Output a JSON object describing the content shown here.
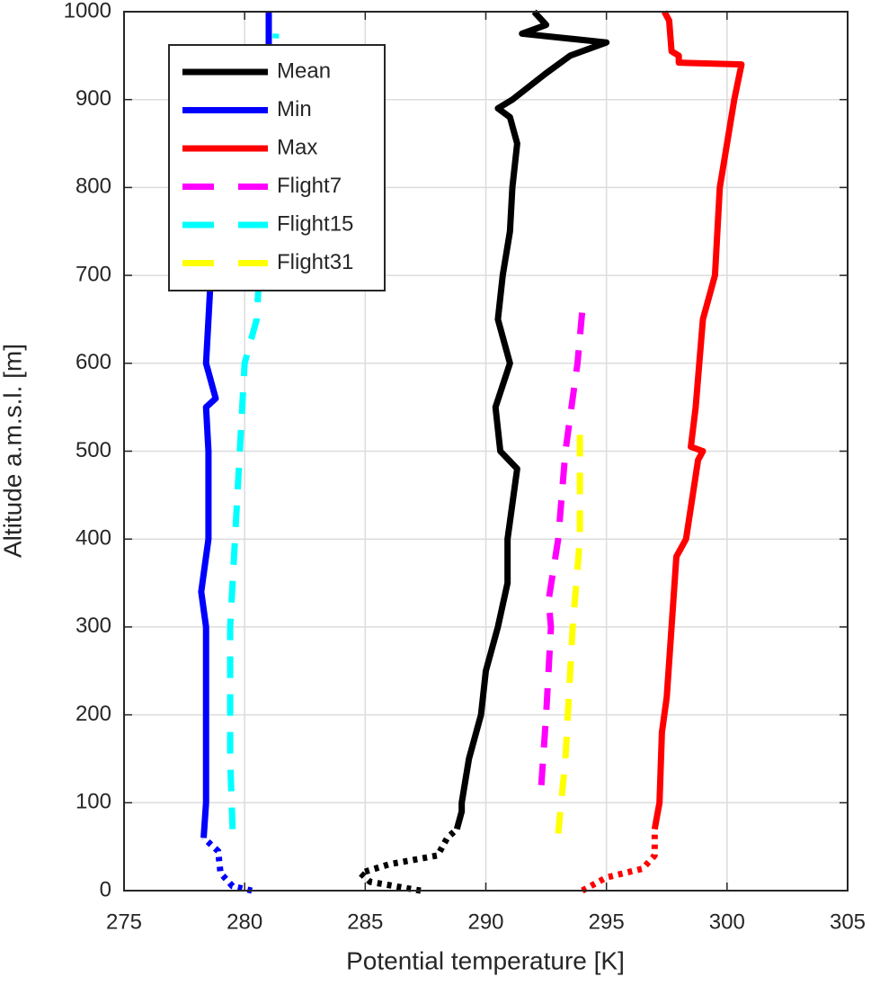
{
  "chart_data": {
    "type": "line",
    "xlabel": "Potential temperature [K]",
    "ylabel": "Altitude a.m.s.l. [m]",
    "xlim": [
      275,
      305
    ],
    "xticks": [
      275,
      280,
      285,
      290,
      295,
      300,
      305
    ],
    "ylim": [
      0,
      1000
    ],
    "yticks": [
      0,
      100,
      200,
      300,
      400,
      500,
      600,
      700,
      800,
      900,
      1000
    ],
    "grid": true,
    "legend": "upper left",
    "series": [
      {
        "name": "Mean",
        "color": "#000000",
        "style": "solid",
        "x": [
          288.8,
          289.0,
          289.0,
          289.3,
          289.8,
          290.0,
          290.5,
          290.9,
          290.9,
          291.3,
          290.6,
          290.4,
          291.0,
          290.5,
          290.7,
          291.0,
          291.1,
          291.3,
          291.0,
          290.5,
          291.1,
          292.5,
          293.5,
          295.0,
          291.5,
          292.5,
          292.0
        ],
        "values": [
          70,
          90,
          100,
          150,
          200,
          250,
          300,
          350,
          400,
          480,
          500,
          550,
          600,
          650,
          700,
          750,
          800,
          850,
          880,
          890,
          900,
          930,
          950,
          965,
          975,
          985,
          1000
        ]
      },
      {
        "name": "Min",
        "color": "#0000ff",
        "style": "solid",
        "x": [
          278.3,
          278.4,
          278.4,
          278.4,
          278.2,
          278.5,
          278.5,
          278.4,
          278.8,
          278.4,
          278.5,
          278.6,
          281.0,
          281.0
        ],
        "values": [
          60,
          100,
          200,
          300,
          340,
          400,
          500,
          550,
          560,
          600,
          650,
          700,
          950,
          1000
        ]
      },
      {
        "name": "Max",
        "color": "#ff0000",
        "style": "solid",
        "x": [
          297.0,
          297.2,
          297.3,
          297.5,
          297.9,
          298.3,
          298.8,
          299.0,
          298.5,
          298.7,
          299.0,
          299.5,
          299.7,
          300.3,
          300.6,
          298.0,
          298.0,
          297.7,
          297.6,
          297.4
        ],
        "values": [
          70,
          100,
          180,
          220,
          380,
          400,
          490,
          500,
          505,
          550,
          650,
          700,
          800,
          900,
          940,
          942,
          950,
          955,
          990,
          1000
        ]
      },
      {
        "name": "Flight7",
        "color": "#ff00ff",
        "style": "dashed",
        "x": [
          292.3,
          292.5,
          292.7,
          292.6,
          293.0,
          293.3,
          293.5,
          293.8,
          294.0
        ],
        "values": [
          120,
          200,
          300,
          330,
          400,
          500,
          540,
          600,
          660
        ]
      },
      {
        "name": "Flight15",
        "color": "#00ffff",
        "style": "dashed",
        "x": [
          279.5,
          279.4,
          279.4,
          279.6,
          279.8,
          280.0,
          280.5,
          280.6,
          281.3
        ],
        "values": [
          70,
          150,
          300,
          400,
          500,
          600,
          650,
          700,
          975
        ]
      },
      {
        "name": "Flight31",
        "color": "#ffff00",
        "style": "dashed",
        "x": [
          293.0,
          293.3,
          293.6,
          293.9,
          293.9,
          293.9
        ],
        "values": [
          65,
          150,
          300,
          400,
          500,
          520
        ]
      },
      {
        "color": "#000000",
        "style": "dotted",
        "x": [
          287.3,
          285.2,
          284.8,
          286.0,
          288.0,
          288.4,
          288.8
        ],
        "values": [
          0,
          10,
          20,
          30,
          40,
          60,
          70
        ]
      },
      {
        "color": "#0000ff",
        "style": "dotted",
        "x": [
          280.3,
          279.5,
          279.0,
          278.9,
          278.3
        ],
        "values": [
          0,
          5,
          20,
          45,
          60
        ]
      },
      {
        "color": "#ff0000",
        "style": "dotted",
        "x": [
          294.0,
          295.0,
          296.5,
          297.0,
          297.0,
          297.0
        ],
        "values": [
          0,
          15,
          25,
          40,
          60,
          70
        ]
      }
    ]
  }
}
